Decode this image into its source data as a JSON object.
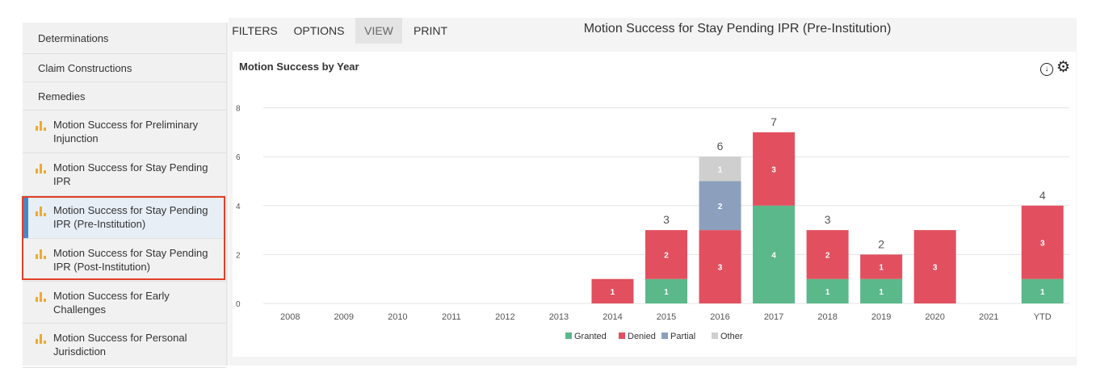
{
  "sidebar": {
    "items": [
      {
        "label": "Determinations",
        "chart": false,
        "selected": false
      },
      {
        "label": "Claim Constructions",
        "chart": false,
        "selected": false
      },
      {
        "label": "Remedies",
        "chart": false,
        "selected": false
      },
      {
        "label": "Motion Success for Preliminary Injunction",
        "line1": "Motion Success for Preliminary",
        "line2": "Injunction",
        "chart": true,
        "selected": false
      },
      {
        "label": "Motion Success for Stay Pending IPR",
        "line1": "Motion Success for Stay Pending",
        "line2": "IPR",
        "chart": true,
        "selected": false
      },
      {
        "label": "Motion Success for Stay Pending IPR (Pre-Institution)",
        "line1": "Motion Success for Stay Pending",
        "line2": "IPR (Pre-Institution)",
        "chart": true,
        "selected": true
      },
      {
        "label": "Motion Success for Stay Pending IPR (Post-Institution)",
        "line1": "Motion Success for Stay Pending",
        "line2": "IPR (Post-Institution)",
        "chart": true,
        "selected": false
      },
      {
        "label": "Motion Success for Early Challenges",
        "line1": "Motion Success for Early",
        "line2": "Challenges",
        "chart": true,
        "selected": false
      },
      {
        "label": "Motion Success for Personal Jurisdiction",
        "line1": "Motion Success for Personal",
        "line2": "Jurisdiction",
        "chart": true,
        "selected": false
      }
    ]
  },
  "toolbar": {
    "filters": "FILTERS",
    "options": "OPTIONS",
    "view": "VIEW",
    "print": "PRINT",
    "active_tab": "VIEW"
  },
  "page_title": "Motion Success for Stay Pending IPR (Pre-Institution)",
  "icons": {
    "download": "download-icon",
    "settings": "gear-icon",
    "sidebar_item": "bar-chart-icon"
  },
  "colors": {
    "granted": "#5bb88a",
    "denied": "#e2505f",
    "partial": "#8ca0bd",
    "other": "#cfcfcf",
    "selected_accent": "#4b87c5",
    "highlight_border": "#e0402a",
    "icon": "#f0a92c"
  },
  "chart_data": {
    "type": "bar",
    "stacked": true,
    "title": "Motion Success by Year",
    "categories": [
      "2008",
      "2009",
      "2010",
      "2011",
      "2012",
      "2013",
      "2014",
      "2015",
      "2016",
      "2017",
      "2018",
      "2019",
      "2020",
      "2021",
      "YTD"
    ],
    "series": [
      {
        "name": "Granted",
        "color": "#5bb88a",
        "values": [
          0,
          0,
          0,
          0,
          0,
          0,
          0,
          1,
          0,
          4,
          1,
          1,
          0,
          0,
          1
        ]
      },
      {
        "name": "Denied",
        "color": "#e2505f",
        "values": [
          0,
          0,
          0,
          0,
          0,
          0,
          1,
          2,
          3,
          3,
          2,
          1,
          3,
          0,
          3
        ]
      },
      {
        "name": "Partial",
        "color": "#8ca0bd",
        "values": [
          0,
          0,
          0,
          0,
          0,
          0,
          0,
          0,
          2,
          0,
          0,
          0,
          0,
          0,
          0
        ]
      },
      {
        "name": "Other",
        "color": "#cfcfcf",
        "values": [
          0,
          0,
          0,
          0,
          0,
          0,
          0,
          0,
          1,
          0,
          0,
          0,
          0,
          0,
          0
        ]
      }
    ],
    "total_labels": [
      "",
      "",
      "",
      "",
      "",
      "",
      "",
      "3",
      "6",
      "7",
      "3",
      "2",
      "",
      "",
      "4"
    ],
    "yticks": [
      0,
      2,
      4,
      6,
      8
    ],
    "ylim": [
      0,
      8
    ],
    "grid": true,
    "legend": "bottom-center"
  }
}
